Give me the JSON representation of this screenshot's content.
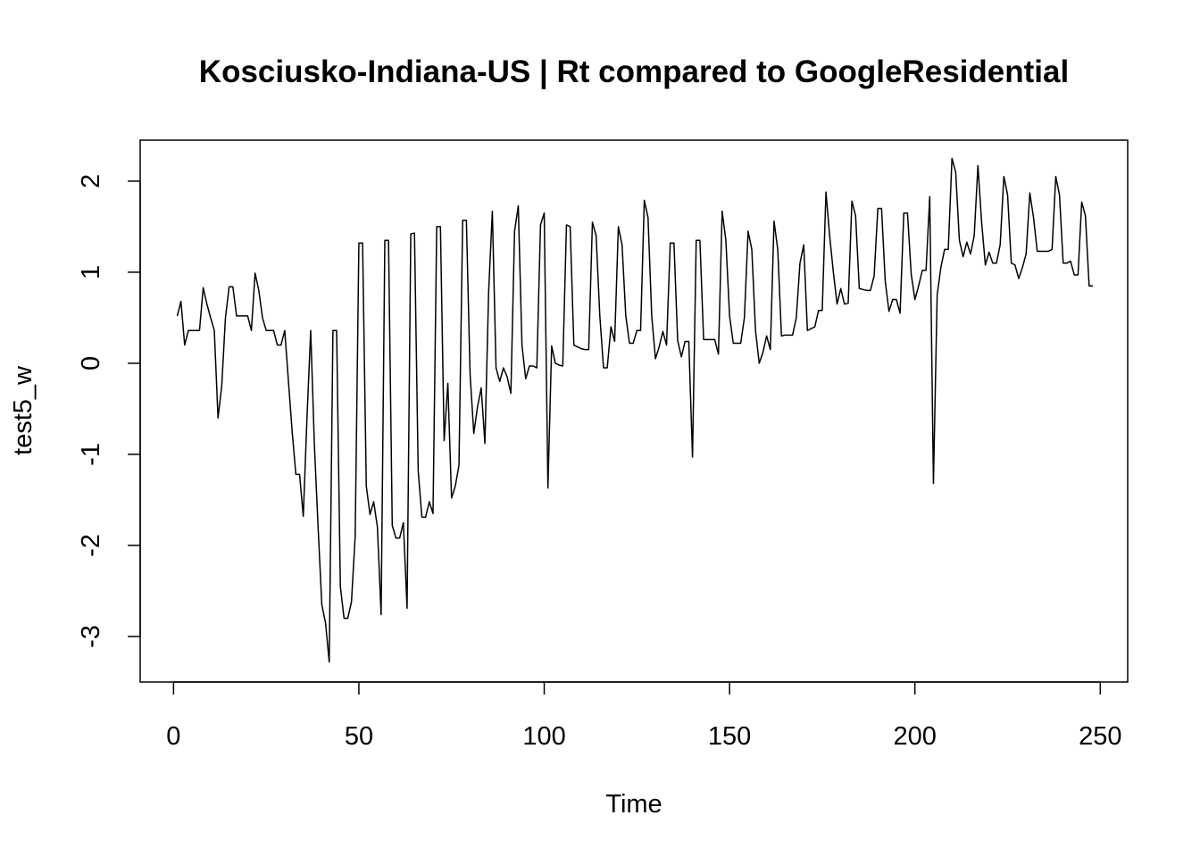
{
  "chart_data": {
    "type": "line",
    "title": "Kosciusko-Indiana-US | Rt compared to GoogleResidential",
    "xlabel": "Time",
    "ylabel": "test5_w",
    "xlim": [
      -9,
      257.4
    ],
    "ylim": [
      -3.5,
      2.45
    ],
    "x_ticks": [
      0,
      50,
      100,
      150,
      200,
      250
    ],
    "y_ticks": [
      -3,
      -2,
      -1,
      0,
      1,
      2
    ],
    "grid": false,
    "series": [
      {
        "color": "#000000",
        "x": [
          1,
          2,
          3,
          4,
          5,
          6,
          7,
          8,
          9,
          10,
          11,
          12,
          13,
          14,
          15,
          16,
          17,
          18,
          19,
          20,
          21,
          22,
          23,
          24,
          25,
          26,
          27,
          28,
          29,
          30,
          31,
          32,
          33,
          34,
          35,
          36,
          37,
          38,
          39,
          40,
          41,
          42,
          43,
          44,
          45,
          46,
          47,
          48,
          49,
          50,
          51,
          52,
          53,
          54,
          55,
          56,
          57,
          58,
          59,
          60,
          61,
          62,
          63,
          64,
          65,
          66,
          67,
          68,
          69,
          70,
          71,
          72,
          73,
          74,
          75,
          76,
          77,
          78,
          79,
          80,
          81,
          82,
          83,
          84,
          85,
          86,
          87,
          88,
          89,
          90,
          91,
          92,
          93,
          94,
          95,
          96,
          97,
          98,
          99,
          100,
          101,
          102,
          103,
          104,
          105,
          106,
          107,
          108,
          109,
          110,
          111,
          112,
          113,
          114,
          115,
          116,
          117,
          118,
          119,
          120,
          121,
          122,
          123,
          124,
          125,
          126,
          127,
          128,
          129,
          130,
          131,
          132,
          133,
          134,
          135,
          136,
          137,
          138,
          139,
          140,
          141,
          142,
          143,
          144,
          145,
          146,
          147,
          148,
          149,
          150,
          151,
          152,
          153,
          154,
          155,
          156,
          157,
          158,
          159,
          160,
          161,
          162,
          163,
          164,
          165,
          166,
          167,
          168,
          169,
          170,
          171,
          172,
          173,
          174,
          175,
          176,
          177,
          178,
          179,
          180,
          181,
          182,
          183,
          184,
          185,
          186,
          187,
          188,
          189,
          190,
          191,
          192,
          193,
          194,
          195,
          196,
          197,
          198,
          199,
          200,
          201,
          202,
          203,
          204,
          205,
          206,
          207,
          208,
          209,
          210,
          211,
          212,
          213,
          214,
          215,
          216,
          217,
          218,
          219,
          220,
          221,
          222,
          223,
          224,
          225,
          226,
          227,
          228,
          229,
          230,
          231,
          232,
          233,
          234,
          235,
          236,
          237,
          238,
          239,
          240,
          241,
          242,
          243,
          244,
          245,
          246,
          247,
          248
        ],
        "values": [
          0.52,
          0.68,
          0.2,
          0.36,
          0.36,
          0.36,
          0.36,
          0.83,
          0.65,
          0.5,
          0.36,
          -0.6,
          -0.25,
          0.5,
          0.84,
          0.84,
          0.52,
          0.52,
          0.52,
          0.52,
          0.36,
          0.99,
          0.8,
          0.5,
          0.36,
          0.36,
          0.36,
          0.2,
          0.2,
          0.36,
          -0.2,
          -0.75,
          -1.22,
          -1.22,
          -1.68,
          -0.6,
          0.36,
          -0.9,
          -1.8,
          -2.65,
          -2.85,
          -3.28,
          0.36,
          0.36,
          -2.45,
          -2.8,
          -2.8,
          -2.62,
          -1.9,
          1.32,
          1.32,
          -1.35,
          -1.66,
          -1.52,
          -1.8,
          -2.76,
          1.35,
          1.35,
          -1.78,
          -1.92,
          -1.92,
          -1.75,
          -2.69,
          1.42,
          1.43,
          -1.18,
          -1.69,
          -1.69,
          -1.52,
          -1.65,
          1.5,
          1.5,
          -0.85,
          -0.22,
          -1.48,
          -1.35,
          -1.12,
          1.57,
          1.57,
          -0.12,
          -0.77,
          -0.48,
          -0.27,
          -0.88,
          0.78,
          1.67,
          -0.05,
          -0.2,
          -0.05,
          -0.15,
          -0.33,
          1.45,
          1.73,
          0.2,
          -0.17,
          -0.03,
          -0.03,
          -0.05,
          1.52,
          1.65,
          -1.37,
          0.19,
          0.0,
          -0.02,
          -0.03,
          1.52,
          1.5,
          0.2,
          0.18,
          0.16,
          0.15,
          0.15,
          1.55,
          1.4,
          0.52,
          -0.05,
          -0.05,
          0.4,
          0.24,
          1.5,
          1.3,
          0.52,
          0.22,
          0.22,
          0.36,
          0.36,
          1.79,
          1.6,
          0.52,
          0.05,
          0.18,
          0.35,
          0.2,
          1.32,
          1.32,
          0.25,
          0.07,
          0.24,
          0.24,
          -1.03,
          1.35,
          1.35,
          0.26,
          0.26,
          0.26,
          0.26,
          0.1,
          1.67,
          1.35,
          0.52,
          0.22,
          0.22,
          0.22,
          0.5,
          1.45,
          1.25,
          0.36,
          0.0,
          0.12,
          0.3,
          0.15,
          1.56,
          1.25,
          0.3,
          0.31,
          0.31,
          0.31,
          0.5,
          1.1,
          1.3,
          0.36,
          0.38,
          0.4,
          0.58,
          0.58,
          1.88,
          1.4,
          1.0,
          0.65,
          0.82,
          0.65,
          0.66,
          1.78,
          1.62,
          0.82,
          0.81,
          0.8,
          0.8,
          0.96,
          1.7,
          1.7,
          0.9,
          0.57,
          0.7,
          0.7,
          0.55,
          1.65,
          1.65,
          0.98,
          0.7,
          0.85,
          1.02,
          1.02,
          1.83,
          -1.32,
          0.75,
          1.05,
          1.25,
          1.25,
          2.25,
          2.1,
          1.35,
          1.17,
          1.33,
          1.2,
          1.4,
          2.17,
          1.55,
          1.08,
          1.22,
          1.1,
          1.1,
          1.3,
          2.05,
          1.85,
          1.1,
          1.08,
          0.93,
          1.05,
          1.2,
          1.87,
          1.6,
          1.23,
          1.23,
          1.23,
          1.23,
          1.25,
          2.05,
          1.85,
          1.1,
          1.1,
          1.12,
          0.97,
          0.97,
          1.77,
          1.62,
          0.85,
          0.85
        ]
      }
    ]
  }
}
